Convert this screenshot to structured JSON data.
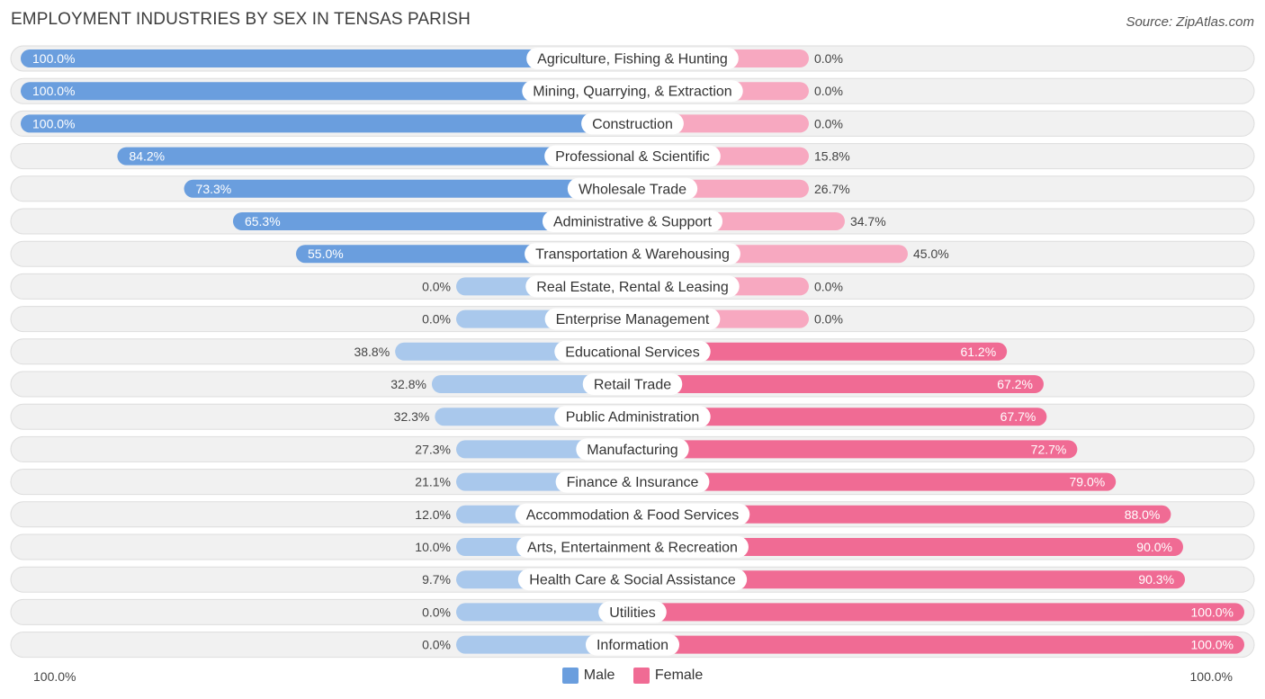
{
  "title": "EMPLOYMENT INDUSTRIES BY SEX IN TENSAS PARISH",
  "source": "Source: ZipAtlas.com",
  "colors": {
    "male": "#6a9ede",
    "male_light": "#a9c8ec",
    "female": "#f06b94",
    "female_light": "#f7a8c0"
  },
  "chart_data": {
    "type": "bar",
    "orientation": "horizontal-diverging",
    "title": "EMPLOYMENT INDUSTRIES BY SEX IN TENSAS PARISH",
    "series": [
      {
        "name": "Male",
        "values": [
          100.0,
          100.0,
          100.0,
          84.2,
          73.3,
          65.3,
          55.0,
          0.0,
          0.0,
          38.8,
          32.8,
          32.3,
          27.3,
          21.1,
          12.0,
          10.0,
          9.7,
          0.0,
          0.0
        ],
        "labels": [
          "100.0%",
          "100.0%",
          "100.0%",
          "84.2%",
          "73.3%",
          "65.3%",
          "55.0%",
          "0.0%",
          "0.0%",
          "38.8%",
          "32.8%",
          "32.3%",
          "27.3%",
          "21.1%",
          "12.0%",
          "10.0%",
          "9.7%",
          "0.0%",
          "0.0%"
        ]
      },
      {
        "name": "Female",
        "values": [
          0.0,
          0.0,
          0.0,
          15.8,
          26.7,
          34.7,
          45.0,
          0.0,
          0.0,
          61.2,
          67.2,
          67.7,
          72.7,
          79.0,
          88.0,
          90.0,
          90.3,
          100.0,
          100.0
        ],
        "labels": [
          "0.0%",
          "0.0%",
          "0.0%",
          "15.8%",
          "26.7%",
          "34.7%",
          "45.0%",
          "0.0%",
          "0.0%",
          "61.2%",
          "67.2%",
          "67.7%",
          "72.7%",
          "79.0%",
          "88.0%",
          "90.0%",
          "90.3%",
          "100.0%",
          "100.0%"
        ]
      }
    ],
    "categories": [
      "Agriculture, Fishing & Hunting",
      "Mining, Quarrying, & Extraction",
      "Construction",
      "Professional & Scientific",
      "Wholesale Trade",
      "Administrative & Support",
      "Transportation & Warehousing",
      "Real Estate, Rental & Leasing",
      "Enterprise Management",
      "Educational Services",
      "Retail Trade",
      "Public Administration",
      "Manufacturing",
      "Finance & Insurance",
      "Accommodation & Food Services",
      "Arts, Entertainment & Recreation",
      "Health Care & Social Assistance",
      "Utilities",
      "Information"
    ],
    "xlim": [
      -100,
      100
    ],
    "axis_left_label": "100.0%",
    "axis_right_label": "100.0%",
    "legend": [
      "Male",
      "Female"
    ],
    "legend_position": "bottom-center"
  }
}
